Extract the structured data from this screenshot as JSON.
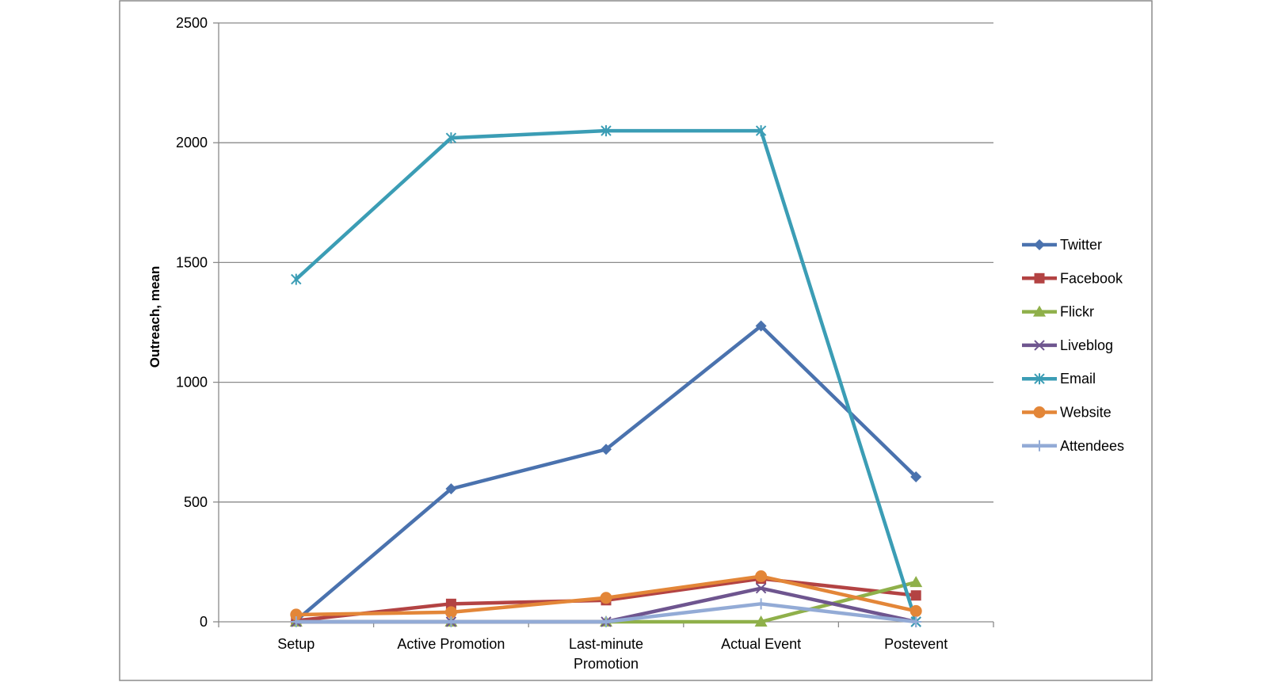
{
  "chart_data": {
    "type": "line",
    "title": "",
    "xlabel": "",
    "ylabel": "Outreach, mean",
    "ylim": [
      0,
      2500
    ],
    "yticks": [
      0,
      500,
      1000,
      1500,
      2000,
      2500
    ],
    "grid": true,
    "legend_position": "right",
    "categories": [
      [
        "Setup"
      ],
      [
        "Active Promotion"
      ],
      [
        "Last-minute",
        "Promotion"
      ],
      [
        "Actual Event"
      ],
      [
        "Postevent"
      ]
    ],
    "series": [
      {
        "name": "Twitter",
        "color": "#4A72AE",
        "marker": "diamond",
        "values": [
          5,
          555,
          720,
          1235,
          605
        ]
      },
      {
        "name": "Facebook",
        "color": "#B34343",
        "marker": "square",
        "values": [
          5,
          75,
          90,
          180,
          110
        ]
      },
      {
        "name": "Flickr",
        "color": "#8FB04A",
        "marker": "triangle",
        "values": [
          0,
          0,
          0,
          0,
          165
        ]
      },
      {
        "name": "Liveblog",
        "color": "#6E558F",
        "marker": "x",
        "values": [
          0,
          0,
          0,
          140,
          0
        ]
      },
      {
        "name": "Email",
        "color": "#3B9DB5",
        "marker": "star",
        "values": [
          1430,
          2020,
          2050,
          2050,
          0
        ]
      },
      {
        "name": "Website",
        "color": "#E38638",
        "marker": "circle",
        "values": [
          30,
          40,
          100,
          190,
          45
        ]
      },
      {
        "name": "Attendees",
        "color": "#93ABD6",
        "marker": "plus",
        "values": [
          0,
          0,
          0,
          75,
          0
        ]
      }
    ]
  }
}
